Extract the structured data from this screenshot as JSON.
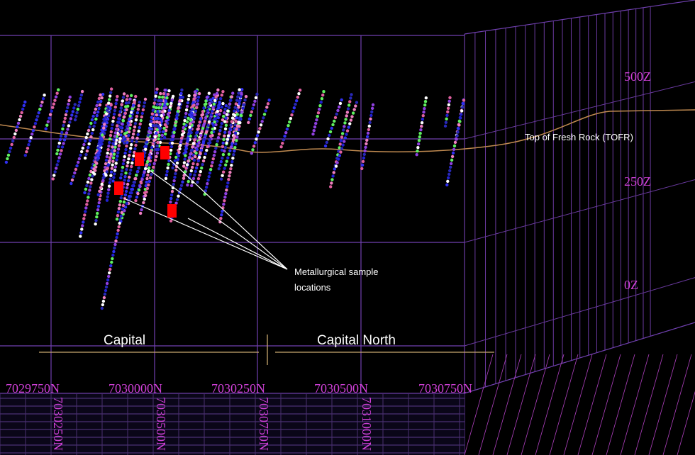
{
  "elevation_labels": [
    "500Z",
    "250Z",
    "0Z"
  ],
  "northing_labels": [
    "7029750N",
    "7030000N",
    "7030250N",
    "7030500N",
    "7030750N"
  ],
  "floor_labels": [
    "7030250N",
    "7030500N",
    "7030750N",
    "7031000N"
  ],
  "annotations": {
    "tofr": "Top of Fresh Rock (TOFR)",
    "samples": [
      "Metallurgical sample",
      "locations"
    ]
  },
  "zones": [
    "Capital",
    "Capital North"
  ]
}
